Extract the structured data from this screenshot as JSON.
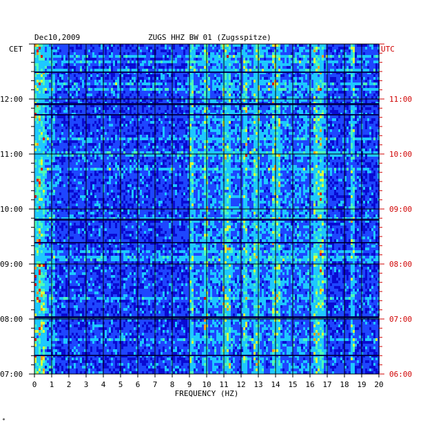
{
  "header": {
    "date": "Dec10,2009",
    "station": "ZUGS HHZ BW 01 (Zugsspitze)"
  },
  "chart_data": {
    "type": "heatmap",
    "title": "ZUGS HHZ BW 01 (Zugsspitze)",
    "date": "Dec10,2009",
    "xlabel": "FREQUENCY (HZ)",
    "xlim": [
      0,
      20
    ],
    "x_ticks": [
      "0",
      "1",
      "2",
      "3",
      "4",
      "5",
      "6",
      "7",
      "8",
      "9",
      "10",
      "11",
      "12",
      "13",
      "14",
      "15",
      "16",
      "17",
      "18",
      "19",
      "20"
    ],
    "left_axis_label": "CET",
    "right_axis_label": "UTC",
    "left_ticks": [
      "12:00",
      "11:00",
      "10:00",
      "09:00",
      "08:00",
      "07:00"
    ],
    "right_ticks": [
      "11:00",
      "10:00",
      "09:00",
      "08:00",
      "07:00",
      "06:00"
    ],
    "time_range_cet": [
      "07:00",
      "13:00"
    ],
    "grid": true,
    "colormap": [
      "#00005a",
      "#0a0ad2",
      "#1e46ff",
      "#1ec8ff",
      "#50ffb4",
      "#dcff3c",
      "#ffa01e",
      "#dc0000"
    ],
    "spectral_lines_hz": [
      0.3,
      9.1,
      10.0,
      11.1,
      11.3,
      12.2,
      12.9,
      13.9,
      14.1,
      16.3,
      16.5,
      16.7,
      18.5
    ],
    "colors": {
      "left_labels": "#000000",
      "right_labels": "#d00000",
      "grid": "#000000"
    }
  },
  "footer": {
    "mark": "*"
  }
}
